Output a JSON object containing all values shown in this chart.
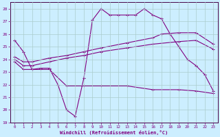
{
  "xlabel": "Windchill (Refroidissement éolien,°C)",
  "bg_color": "#cceeff",
  "line_color": "#800080",
  "grid_color": "#aacccc",
  "ylim": [
    19,
    28.5
  ],
  "xlim": [
    -0.5,
    23.5
  ],
  "yticks": [
    19,
    20,
    21,
    22,
    23,
    24,
    25,
    26,
    27,
    28
  ],
  "xticks": [
    0,
    1,
    2,
    3,
    4,
    5,
    6,
    7,
    8,
    9,
    10,
    11,
    12,
    13,
    14,
    15,
    16,
    17,
    18,
    19,
    20,
    21,
    22,
    23
  ],
  "series1_x": [
    0,
    1,
    2,
    3,
    4,
    5,
    6,
    7,
    8,
    9,
    10,
    11,
    12,
    13,
    14,
    15,
    16,
    17,
    18,
    19,
    20,
    21,
    22,
    23
  ],
  "series1_y": [
    25.5,
    24.6,
    23.2,
    23.3,
    23.3,
    22.0,
    20.0,
    19.5,
    22.5,
    27.1,
    28.0,
    27.5,
    27.5,
    27.5,
    27.5,
    28.0,
    27.5,
    27.2,
    26.0,
    25.0,
    24.0,
    23.5,
    22.8,
    21.5
  ],
  "series2_x": [
    0,
    1,
    2,
    4,
    6,
    8,
    10,
    13,
    16,
    19,
    21,
    23
  ],
  "series2_y": [
    23.8,
    23.2,
    23.2,
    23.2,
    21.9,
    21.9,
    21.9,
    21.9,
    21.6,
    21.6,
    21.5,
    21.3
  ],
  "series3_x": [
    0,
    1,
    2,
    4,
    6,
    8,
    10,
    13,
    16,
    19,
    21,
    23
  ],
  "series3_y": [
    24.0,
    23.5,
    23.5,
    23.8,
    24.1,
    24.3,
    24.6,
    24.9,
    25.2,
    25.4,
    25.5,
    24.8
  ],
  "series4_x": [
    0,
    1,
    2,
    4,
    6,
    8,
    10,
    13,
    16,
    17,
    19,
    21,
    23
  ],
  "series4_y": [
    24.2,
    23.8,
    23.8,
    24.1,
    24.3,
    24.6,
    24.9,
    25.3,
    25.7,
    26.0,
    26.1,
    26.1,
    25.2
  ]
}
